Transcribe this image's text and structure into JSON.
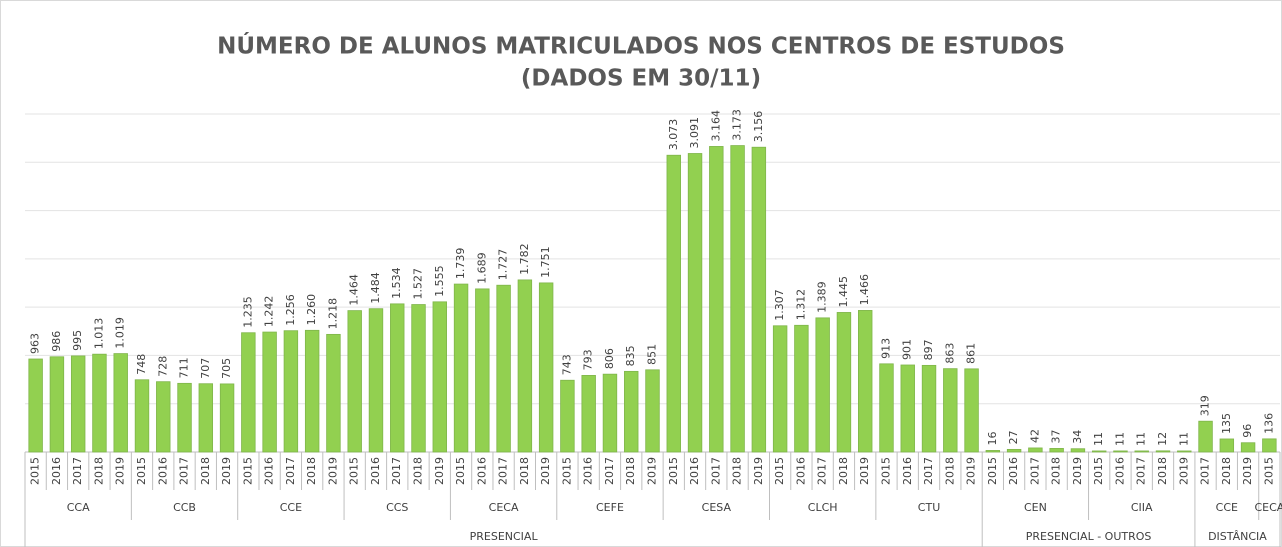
{
  "chart_data": {
    "type": "bar",
    "title": "NÚMERO DE ALUNOS MATRICULADOS NOS CENTROS DE ESTUDOS",
    "subtitle": "(DADOS EM 30/11)",
    "color": "#92d050",
    "ylim": [
      0,
      3500
    ],
    "yticks": [
      0,
      500,
      1000,
      1500,
      2000,
      2500,
      3000,
      3500
    ],
    "grid": true,
    "groups": [
      {
        "name": "PRESENCIAL",
        "groups": [
          {
            "name": "CCA",
            "categories": [
              "2015",
              "2016",
              "2017",
              "2018",
              "2019"
            ],
            "values": [
              963,
              986,
              995,
              1013,
              1019
            ],
            "value_labels": [
              "963",
              "986",
              "995",
              "1.013",
              "1.019"
            ]
          },
          {
            "name": "CCB",
            "categories": [
              "2015",
              "2016",
              "2017",
              "2018",
              "2019"
            ],
            "values": [
              748,
              728,
              711,
              707,
              705
            ],
            "value_labels": [
              "748",
              "728",
              "711",
              "707",
              "705"
            ]
          },
          {
            "name": "CCE",
            "categories": [
              "2015",
              "2016",
              "2017",
              "2018",
              "2019"
            ],
            "values": [
              1235,
              1242,
              1256,
              1260,
              1218
            ],
            "value_labels": [
              "1.235",
              "1.242",
              "1.256",
              "1.260",
              "1.218"
            ]
          },
          {
            "name": "CCS",
            "categories": [
              "2015",
              "2016",
              "2017",
              "2018",
              "2019"
            ],
            "values": [
              1464,
              1484,
              1534,
              1527,
              1555
            ],
            "value_labels": [
              "1.464",
              "1.484",
              "1.534",
              "1.527",
              "1.555"
            ]
          },
          {
            "name": "CECA",
            "categories": [
              "2015",
              "2016",
              "2017",
              "2018",
              "2019"
            ],
            "values": [
              1739,
              1689,
              1727,
              1782,
              1751
            ],
            "value_labels": [
              "1.739",
              "1.689",
              "1.727",
              "1.782",
              "1.751"
            ]
          },
          {
            "name": "CEFE",
            "categories": [
              "2015",
              "2016",
              "2017",
              "2018",
              "2019"
            ],
            "values": [
              743,
              793,
              806,
              835,
              851
            ],
            "value_labels": [
              "743",
              "793",
              "806",
              "835",
              "851"
            ]
          },
          {
            "name": "CESA",
            "categories": [
              "2015",
              "2016",
              "2017",
              "2018",
              "2019"
            ],
            "values": [
              3073,
              3091,
              3164,
              3173,
              3156
            ],
            "value_labels": [
              "3.073",
              "3.091",
              "3.164",
              "3.173",
              "3.156"
            ]
          },
          {
            "name": "CLCH",
            "categories": [
              "2015",
              "2016",
              "2017",
              "2018",
              "2019"
            ],
            "values": [
              1307,
              1312,
              1389,
              1445,
              1466
            ],
            "value_labels": [
              "1.307",
              "1.312",
              "1.389",
              "1.445",
              "1.466"
            ]
          },
          {
            "name": "CTU",
            "categories": [
              "2015",
              "2016",
              "2017",
              "2018",
              "2019"
            ],
            "values": [
              913,
              901,
              897,
              863,
              861
            ],
            "value_labels": [
              "913",
              "901",
              "897",
              "863",
              "861"
            ]
          }
        ]
      },
      {
        "name": "PRESENCIAL - OUTROS",
        "groups": [
          {
            "name": "CEN",
            "categories": [
              "2015",
              "2016",
              "2017",
              "2018",
              "2019"
            ],
            "values": [
              16,
              27,
              42,
              37,
              34
            ],
            "value_labels": [
              "16",
              "27",
              "42",
              "37",
              "34"
            ]
          },
          {
            "name": "CIIA",
            "categories": [
              "2015",
              "2016",
              "2017",
              "2018",
              "2019"
            ],
            "values": [
              11,
              11,
              11,
              12,
              11
            ],
            "value_labels": [
              "11",
              "11",
              "11",
              "12",
              "11"
            ]
          }
        ]
      },
      {
        "name": "DISTÂNCIA",
        "groups": [
          {
            "name": "CCE",
            "categories": [
              "2017",
              "2018",
              "2019"
            ],
            "values": [
              319,
              135,
              96
            ],
            "value_labels": [
              "319",
              "135",
              "96"
            ]
          },
          {
            "name": "CECA",
            "categories": [
              "2015"
            ],
            "values": [
              136
            ],
            "value_labels": [
              "136"
            ]
          }
        ]
      }
    ]
  }
}
